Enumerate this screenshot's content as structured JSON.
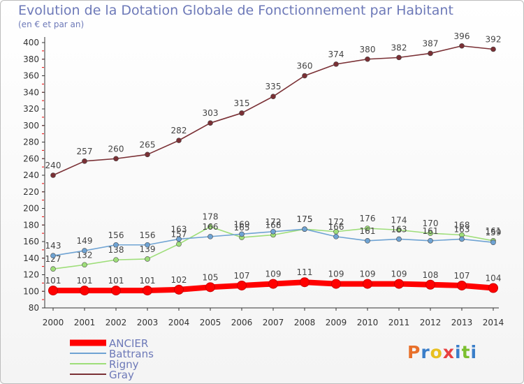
{
  "title": "Evolution de la Dotation Globale de Fonctionnement par Habitant",
  "subtitle": "(en € et par an)",
  "logo": {
    "text": "Proxiti",
    "colors": [
      "#e8702a",
      "#3a7ec9",
      "#e8c020",
      "#e84040",
      "#3a7ec9",
      "#7bbf2e",
      "#3a7ec9"
    ]
  },
  "chart_data": {
    "type": "line",
    "title": "Evolution de la Dotation Globale de Fonctionnement par Habitant",
    "subtitle": "(en € et par an)",
    "categories": [
      "2000",
      "2001",
      "2002",
      "2003",
      "2004",
      "2005",
      "2006",
      "2007",
      "2008",
      "2009",
      "2010",
      "2011",
      "2012",
      "2013",
      "2014"
    ],
    "ylim": [
      80,
      400
    ],
    "yticks": [
      80,
      100,
      120,
      140,
      160,
      180,
      200,
      220,
      240,
      260,
      280,
      300,
      320,
      340,
      360,
      380,
      400
    ],
    "grid": false,
    "legend_position": "bottom-left",
    "series": [
      {
        "name": "ANCIER",
        "color": "#ff0000",
        "values": [
          101,
          101,
          101,
          101,
          102,
          105,
          107,
          109,
          111,
          109,
          109,
          109,
          108,
          107,
          104
        ],
        "labels": [
          101,
          101,
          101,
          101,
          102,
          105,
          107,
          109,
          111,
          109,
          109,
          109,
          108,
          107,
          104
        ]
      },
      {
        "name": "Battrans",
        "color": "#6fa3d3",
        "values": [
          143,
          149,
          156,
          156,
          163,
          166,
          169,
          172,
          175,
          166,
          161,
          163,
          161,
          163,
          159
        ],
        "labels": [
          143,
          149,
          156,
          156,
          163,
          166,
          169,
          172,
          175,
          166,
          161,
          163,
          161,
          163,
          159
        ]
      },
      {
        "name": "Rigny",
        "color": "#9ede79",
        "values": [
          127,
          132,
          138,
          139,
          157,
          178,
          165,
          168,
          175,
          172,
          176,
          174,
          170,
          168,
          161
        ],
        "labels": [
          127,
          132,
          138,
          139,
          157,
          178,
          165,
          168,
          175,
          172,
          176,
          174,
          170,
          168,
          161
        ]
      },
      {
        "name": "Gray",
        "color": "#7a3035",
        "values": [
          240,
          257,
          260,
          265,
          282,
          303,
          315,
          335,
          360,
          374,
          380,
          382,
          387,
          396,
          392
        ],
        "labels": [
          240,
          257,
          260,
          265,
          282,
          303,
          315,
          335,
          360,
          374,
          380,
          382,
          387,
          396,
          392
        ]
      }
    ]
  }
}
